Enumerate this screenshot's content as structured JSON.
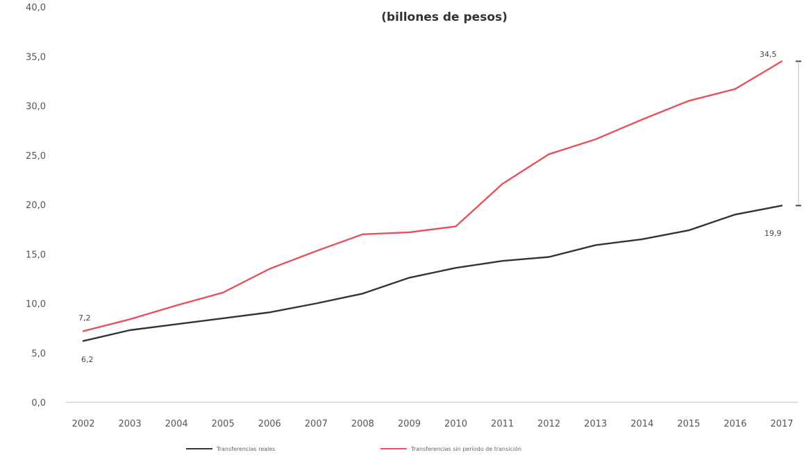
{
  "chart_data": {
    "type": "line",
    "subtitle": "(billones de pesos)",
    "xlabel": "",
    "ylabel": "",
    "x": [
      "2002",
      "2003",
      "2004",
      "2005",
      "2006",
      "2007",
      "2008",
      "2009",
      "2010",
      "2011",
      "2012",
      "2013",
      "2014",
      "2015",
      "2016",
      "2017"
    ],
    "ylim": [
      0,
      40
    ],
    "yticks": [
      "0,0",
      "5,0",
      "10,0",
      "15,0",
      "20,0",
      "25,0",
      "30,0",
      "35,0",
      "40,0"
    ],
    "grid": false,
    "legend_position": "bottom",
    "series": [
      {
        "name": "Transferencias reales",
        "color": "#333333",
        "values": [
          6.2,
          7.3,
          7.9,
          8.5,
          9.1,
          10.0,
          11.0,
          12.6,
          13.6,
          14.3,
          14.7,
          15.9,
          16.5,
          17.4,
          19.0,
          19.9
        ]
      },
      {
        "name": "Transferencias sin período de transición",
        "color": "#e8505a",
        "values": [
          7.2,
          8.4,
          9.8,
          11.1,
          13.5,
          15.3,
          17.0,
          17.2,
          17.8,
          22.1,
          25.1,
          26.6,
          28.6,
          30.5,
          31.7,
          34.5
        ]
      }
    ],
    "data_labels": {
      "first_real": "6,2",
      "first_sin": "7,2",
      "last_real": "19,9",
      "last_sin": "34,5"
    }
  }
}
